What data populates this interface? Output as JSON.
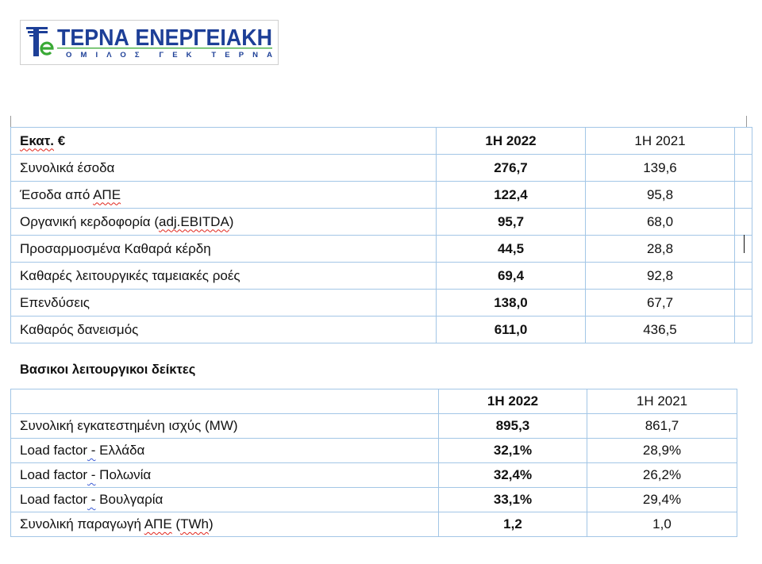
{
  "colors": {
    "brand_blue": "#1d3f97",
    "brand_green": "#39a935",
    "table_border": "#a3c6e6",
    "spell_mark": "#e0241b",
    "grammar_mark": "#3b5bd6"
  },
  "logo": {
    "name": "ΤΕΡΝΑ ΕΝΕΡΓΕΙΑΚΗ",
    "tagline": "ΟΜΙΛΟΣ ΓΕΚ ΤΕΡΝΑ"
  },
  "financials": {
    "header": {
      "label": [
        {
          "text": "Εκατ.",
          "spell": true
        },
        {
          "text": " €"
        }
      ],
      "col_2022": "1Η 2022",
      "col_2021": "1Η 2021"
    },
    "rows": [
      {
        "label": [
          {
            "text": "Συνολικά έσοδα"
          }
        ],
        "v2022": "276,7",
        "v2021": "139,6"
      },
      {
        "label": [
          {
            "text": "Έσοδα από "
          },
          {
            "text": "ΑΠΕ",
            "spell": true
          }
        ],
        "v2022": "122,4",
        "v2021": "95,8"
      },
      {
        "label": [
          {
            "text": "Οργανική κερδοφορία ("
          },
          {
            "text": "adj.EBITDA",
            "spell": true
          },
          {
            "text": ")"
          }
        ],
        "v2022": "95,7",
        "v2021": "68,0"
      },
      {
        "label": [
          {
            "text": "Προσαρμοσμένα Καθαρά κέρδη"
          }
        ],
        "v2022": "44,5",
        "v2021": "28,8"
      },
      {
        "label": [
          {
            "text": "Καθαρές λειτουργικές ταμειακές ροές"
          }
        ],
        "v2022": "69,4",
        "v2021": "92,8"
      },
      {
        "label": [
          {
            "text": "Επενδύσεις"
          }
        ],
        "v2022": "138,0",
        "v2021": "67,7"
      },
      {
        "label": [
          {
            "text": "Καθαρός δανεισμός"
          }
        ],
        "v2022": "611,0",
        "v2021": "436,5"
      }
    ]
  },
  "kpis": {
    "title": "Βασικοι λειτουργικοι δείκτες",
    "header": {
      "col_2022": "1Η 2022",
      "col_2021": "1Η 2021"
    },
    "rows": [
      {
        "label": [
          {
            "text": "Συνολική εγκατεστημένη ισχύς (MW)"
          }
        ],
        "v2022": "895,3",
        "v2021": "861,7"
      },
      {
        "label": [
          {
            "text": "Load factor"
          },
          {
            "text": " -",
            "grammar": true
          },
          {
            "text": " Ελλάδα"
          }
        ],
        "v2022": "32,1%",
        "v2021": "28,9%"
      },
      {
        "label": [
          {
            "text": "Load factor"
          },
          {
            "text": " -",
            "grammar": true
          },
          {
            "text": " Πολωνία"
          }
        ],
        "v2022": "32,4%",
        "v2021": "26,2%"
      },
      {
        "label": [
          {
            "text": "Load factor"
          },
          {
            "text": " -",
            "grammar": true
          },
          {
            "text": " Βουλγαρία"
          }
        ],
        "v2022": "33,1%",
        "v2021": "29,4%"
      },
      {
        "label": [
          {
            "text": "Συνολική παραγωγή "
          },
          {
            "text": "ΑΠΕ",
            "spell": true
          },
          {
            "text": " ("
          },
          {
            "text": "TWh",
            "spell": true
          },
          {
            "text": ")"
          }
        ],
        "v2022": "1,2",
        "v2021": "1,0"
      }
    ]
  }
}
